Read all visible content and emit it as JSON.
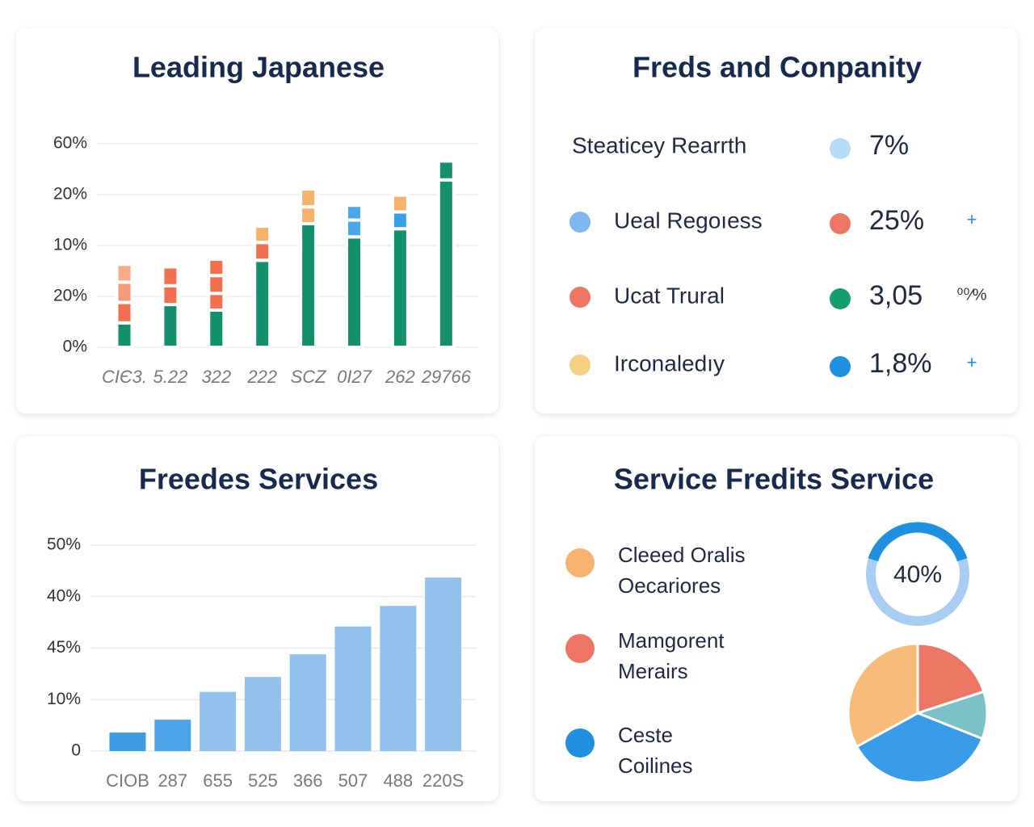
{
  "chart_data": [
    {
      "type": "stacked-bar",
      "title": "Leading Japanese",
      "categories": [
        "CIЄ3.",
        "5.22",
        "322",
        "222",
        "SCZ",
        "0I27",
        "262",
        "29766"
      ],
      "ylim": [
        0,
        4
      ],
      "yticks": [
        {
          "value": 0,
          "label": "0%"
        },
        {
          "value": 1,
          "label": "20%"
        },
        {
          "value": 2,
          "label": "10%"
        },
        {
          "value": 3,
          "label": "20%"
        },
        {
          "value": 4,
          "label": "60%"
        }
      ],
      "grid": true,
      "series": [
        {
          "values": [
            0.48,
            0.84,
            0.73,
            1.71,
            2.43,
            2.17,
            2.33,
            3.29
          ],
          "colors": [
            "#14906a",
            "#14906a",
            "#14906a",
            "#14906a",
            "#14906a",
            "#14906a",
            "#14906a",
            "#14906a"
          ]
        },
        {
          "values": [
            0.4,
            0.37,
            0.33,
            0.35,
            0.33,
            0.33,
            0.33,
            0.37
          ],
          "colors": [
            "#f07050",
            "#f07050",
            "#f07050",
            "#f07050",
            "#f5b26b",
            "#4aa8e8",
            "#3a9fe8",
            "#14906a"
          ]
        },
        {
          "values": [
            0.4,
            0.37,
            0.35,
            0.32,
            0.35,
            0.29,
            0.33,
            null
          ],
          "colors": [
            "#f59a78",
            "#f07050",
            "#f07050",
            "#f5b26b",
            "#f5b26b",
            "#4aa8e8",
            "#f5b26b",
            null
          ]
        },
        {
          "values": [
            0.35,
            null,
            0.32,
            null,
            null,
            null,
            null,
            null
          ],
          "colors": [
            "#f8aa88",
            null,
            "#f07050",
            null,
            null,
            null,
            null,
            null
          ]
        }
      ]
    },
    {
      "type": "bar",
      "title": "Freedes Services",
      "categories": [
        "CIOB",
        "287",
        "655",
        "525",
        "366",
        "507",
        "488",
        "220S"
      ],
      "ylim": [
        0,
        4
      ],
      "yticks": [
        {
          "value": 0,
          "label": "0"
        },
        {
          "value": 1,
          "label": "10%"
        },
        {
          "value": 2,
          "label": "45%"
        },
        {
          "value": 3,
          "label": "40%"
        },
        {
          "value": 4,
          "label": "50%"
        }
      ],
      "grid": true,
      "values": [
        0.36,
        0.61,
        1.15,
        1.44,
        1.88,
        2.42,
        2.82,
        3.37
      ],
      "colors": [
        "#3d9be6",
        "#4da3e8",
        "#92c1ec",
        "#92c1ec",
        "#92c1ec",
        "#92c1ec",
        "#92c1ec",
        "#92c1ec"
      ]
    },
    {
      "type": "donut",
      "values": [
        40
      ],
      "value_labels": [
        "40%"
      ],
      "color": "#1f8fe0",
      "track_color": "#a9ccf2"
    },
    {
      "type": "pie",
      "title": "Service Fredits Service",
      "values": [
        20,
        11,
        36,
        33
      ],
      "colors": [
        "#ec7563",
        "#7bc1c6",
        "#3a9be6",
        "#f6bb78"
      ],
      "legend": [
        {
          "lines": [
            "Cleeed Oralis",
            "Oecariores"
          ],
          "color": "#f6b26e"
        },
        {
          "lines": [
            "Mamgorent",
            "Merairs"
          ],
          "color": "#ec7563"
        },
        {
          "lines": [
            "Ceste",
            "Coilines"
          ],
          "color": "#1f8fe0"
        }
      ]
    }
  ],
  "list_panel": {
    "title": "Freds and Conpanity",
    "items": [
      {
        "label": "Steaticey Rearrth",
        "dot": null,
        "value_dot": "#b5dcf5",
        "value": "7%",
        "note": null
      },
      {
        "label": "Ueal Regoıess",
        "dot": "#7db8ee",
        "value_dot": "#ec7563",
        "value": "25%",
        "note": "+"
      },
      {
        "label": "Ucat Trural",
        "dot": "#ec7563",
        "value_dot": "#14a06a",
        "value": "3,05",
        "note": "⁰⁰⁄%"
      },
      {
        "label": "Irconaledıy",
        "dot": "#f6cf82",
        "value_dot": "#1f8fe0",
        "value": "1,8%",
        "note": "+"
      }
    ]
  }
}
